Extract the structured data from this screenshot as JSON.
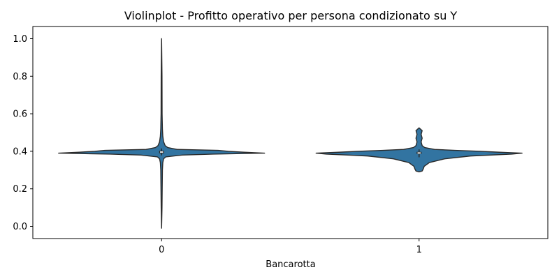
{
  "chart_data": {
    "type": "violin",
    "title": "Violinplot - Profitto operativo per persona condizionato su Y",
    "xlabel": "Bancarotta",
    "ylabel": "",
    "categories": [
      "0",
      "1"
    ],
    "ylim": [
      -0.065,
      1.065
    ],
    "yticks": [
      0.0,
      0.2,
      0.4,
      0.6,
      0.8,
      1.0
    ],
    "ytick_labels": [
      "0.0",
      "0.2",
      "0.4",
      "0.6",
      "0.8",
      "1.0"
    ],
    "grid": false,
    "fill_color": "#3274a1",
    "edge_color": "#2a2a2a",
    "violins": [
      {
        "category": "0",
        "min": -0.01,
        "max": 1.0,
        "q1": 0.389,
        "median": 0.396,
        "q3": 0.403,
        "whisker_low": 0.378,
        "whisker_high": 0.415,
        "density_profile": [
          [
            -0.01,
            0.0
          ],
          [
            0.1,
            0.004
          ],
          [
            0.2,
            0.006
          ],
          [
            0.3,
            0.008
          ],
          [
            0.34,
            0.012
          ],
          [
            0.36,
            0.02
          ],
          [
            0.37,
            0.04
          ],
          [
            0.38,
            0.2
          ],
          [
            0.385,
            0.5
          ],
          [
            0.39,
            1.0
          ],
          [
            0.395,
            0.8
          ],
          [
            0.4,
            0.65
          ],
          [
            0.405,
            0.55
          ],
          [
            0.41,
            0.15
          ],
          [
            0.42,
            0.06
          ],
          [
            0.43,
            0.035
          ],
          [
            0.45,
            0.02
          ],
          [
            0.48,
            0.012
          ],
          [
            0.52,
            0.008
          ],
          [
            0.6,
            0.005
          ],
          [
            0.8,
            0.004
          ],
          [
            1.0,
            0.0
          ]
        ]
      },
      {
        "category": "1",
        "min": 0.29,
        "max": 0.525,
        "q1": 0.386,
        "median": 0.391,
        "q3": 0.397,
        "whisker_low": 0.368,
        "whisker_high": 0.41,
        "density_profile": [
          [
            0.29,
            0.0
          ],
          [
            0.295,
            0.03
          ],
          [
            0.305,
            0.04
          ],
          [
            0.32,
            0.05
          ],
          [
            0.34,
            0.1
          ],
          [
            0.36,
            0.25
          ],
          [
            0.375,
            0.5
          ],
          [
            0.385,
            0.9
          ],
          [
            0.39,
            1.0
          ],
          [
            0.395,
            0.78
          ],
          [
            0.4,
            0.6
          ],
          [
            0.405,
            0.35
          ],
          [
            0.41,
            0.15
          ],
          [
            0.42,
            0.055
          ],
          [
            0.43,
            0.03
          ],
          [
            0.45,
            0.02
          ],
          [
            0.47,
            0.03
          ],
          [
            0.49,
            0.02
          ],
          [
            0.51,
            0.03
          ],
          [
            0.525,
            0.0
          ]
        ]
      }
    ]
  }
}
